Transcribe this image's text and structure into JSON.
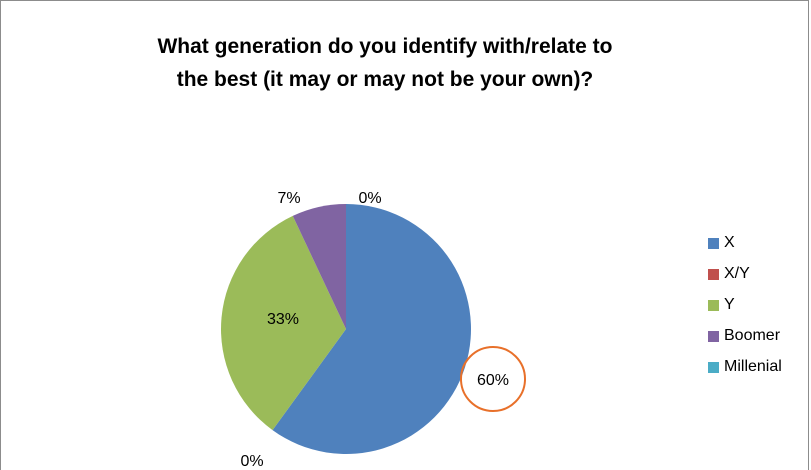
{
  "chart_data": {
    "type": "pie",
    "title": "What generation do you identify with/relate to the best (it may or may not be your own)?",
    "title_lines": [
      "What generation do you identify with/relate to",
      "the best (it may or may not be your own)?"
    ],
    "categories": [
      "X",
      "X/Y",
      "Y",
      "Boomer",
      "Millenial"
    ],
    "values": [
      60,
      0,
      33,
      7,
      0
    ],
    "data_labels": [
      "60%",
      "0%",
      "33%",
      "7%",
      "0%"
    ],
    "colors": [
      "#4f81bd",
      "#c0504d",
      "#9bbb59",
      "#8064a2",
      "#4bacc6"
    ],
    "legend": {
      "position": "right",
      "items": [
        "X",
        "X/Y",
        "Y",
        "Boomer",
        "Millenial"
      ]
    },
    "annotation": {
      "type": "circle-highlight",
      "target_label": "60%",
      "color": "#e8702a"
    }
  }
}
